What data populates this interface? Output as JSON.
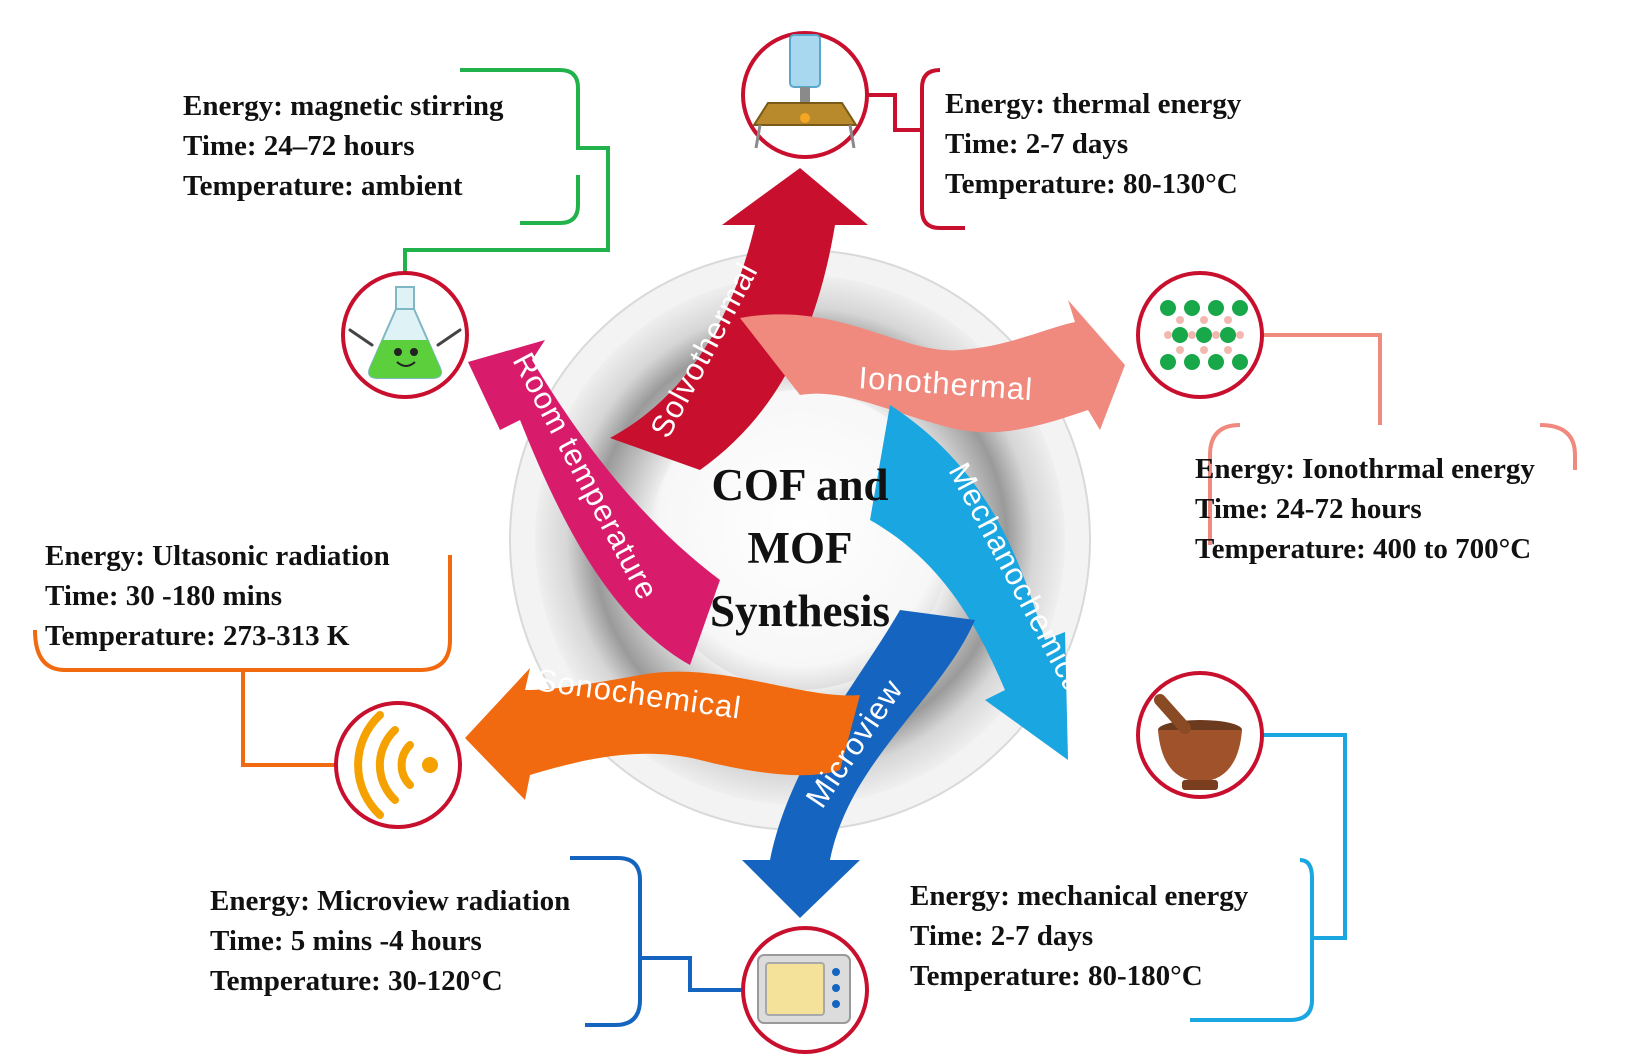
{
  "center": {
    "line1": "COF and",
    "line2": "MOF",
    "line3": "Synthesis"
  },
  "methods": {
    "solvothermal": {
      "label": "Solvothermal",
      "color": "#c8102e",
      "icon": "heating-apparatus-icon",
      "energy": "Energy: thermal energy",
      "time": "Time: 2-7 days",
      "temperature": "Temperature: 80-130°C"
    },
    "ionothermal": {
      "label": "Ionothermal",
      "color": "#f08a7e",
      "icon": "crystal-lattice-icon",
      "energy": "Energy: Ionothrmal energy",
      "time": "Time: 24-72 hours",
      "temperature": "Temperature: 400 to 700°C"
    },
    "mechanochemical": {
      "label": "Mechanochemical",
      "color": "#1aa6e0",
      "icon": "mortar-pestle-icon",
      "energy": "Energy: mechanical energy",
      "time": "Time: 2-7 days",
      "temperature": "Temperature: 80-180°C"
    },
    "microview": {
      "label": "Microview",
      "color": "#1565c0",
      "icon": "microwave-oven-icon",
      "energy": "Energy: Microview radiation",
      "time": "Time: 5 mins -4 hours",
      "temperature": "Temperature: 30-120°C"
    },
    "sonochemical": {
      "label": "Sonochemical",
      "color": "#f26a0f",
      "icon": "ultrasonic-waves-icon",
      "energy": "Energy: Ultasonic radiation",
      "time": "Time: 30 -180 mins",
      "temperature": "Temperature: 273-313 K"
    },
    "room_temperature": {
      "label": "Room temperature",
      "color": "#d81b6a",
      "icon": "flask-mascot-icon",
      "energy": "Energy: magnetic stirring",
      "time": "Time: 24–72 hours",
      "temperature": "Temperature: ambient"
    }
  },
  "colors": {
    "icon_ring": "#c8102e",
    "room_temperature_connector": "#22b24c",
    "mechanochemical_connector": "#1aa6e0",
    "microview_connector": "#1565c0"
  }
}
